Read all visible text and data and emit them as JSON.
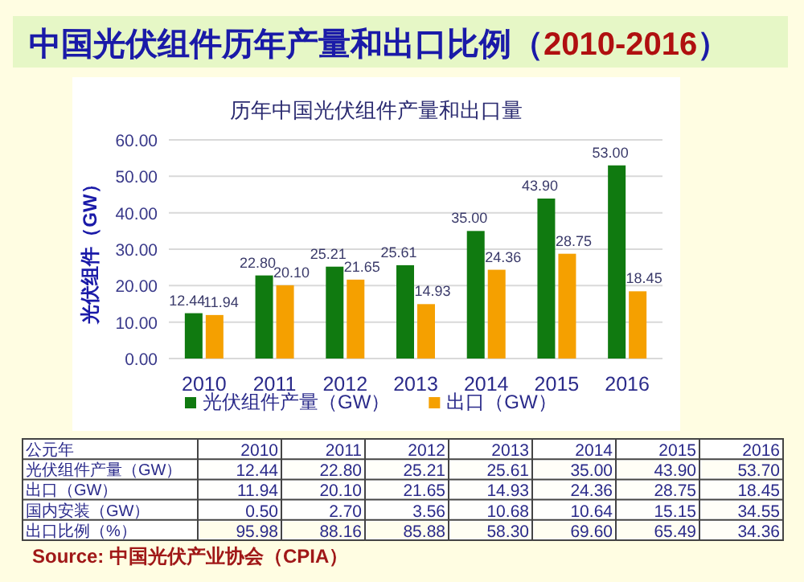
{
  "chart_data": [
    {
      "type": "bar",
      "title": "中国光伏组件历年产量和出口比例（2010-2016）",
      "subtitle": "历年中国光伏组件产量和出口量",
      "ylabel": "光伏组件（GW）",
      "categories": [
        "2010",
        "2011",
        "2012",
        "2013",
        "2014",
        "2015",
        "2016"
      ],
      "series": [
        {
          "name": "光伏组件产量（GW）",
          "color": "#107a10",
          "values": [
            12.44,
            22.8,
            25.21,
            25.61,
            35.0,
            43.9,
            53.0
          ],
          "value_labels": [
            "12.44",
            "22.80",
            "25.21",
            "25.61",
            "35.00",
            "43.90",
            "53.00"
          ]
        },
        {
          "name": "出口（GW）",
          "color": "#f5a000",
          "values": [
            11.94,
            20.1,
            21.65,
            14.93,
            24.36,
            28.75,
            18.45
          ],
          "value_labels": [
            "11.94",
            "20.10",
            "21.65",
            "14.93",
            "24.36",
            "28.75",
            "18.45"
          ]
        }
      ],
      "ylim": [
        0,
        60
      ],
      "yticks": [
        {
          "value": 0,
          "label": "0.00"
        },
        {
          "value": 10,
          "label": "10.00"
        },
        {
          "value": 20,
          "label": "20.00"
        },
        {
          "value": 30,
          "label": "30.00"
        },
        {
          "value": 40,
          "label": "40.00"
        },
        {
          "value": 50,
          "label": "50.00"
        },
        {
          "value": 60,
          "label": "60.00"
        }
      ],
      "grid": "y",
      "legend": "bottom"
    },
    {
      "type": "heatmap",
      "xlabel": "公元年",
      "categories": [
        "2010",
        "2011",
        "2012",
        "2013",
        "2014",
        "2015",
        "2016"
      ],
      "y_categories": [
        "光伏组件产量（GW）",
        "出口（GW）",
        "国内安装（GW）",
        "出口比例（%）"
      ],
      "cells": [
        [
          12.44,
          22.8,
          25.21,
          25.61,
          35.0,
          43.9,
          53.7
        ],
        [
          11.94,
          20.1,
          21.65,
          14.93,
          24.36,
          28.75,
          18.45
        ],
        [
          0.5,
          2.7,
          3.56,
          10.68,
          10.64,
          15.15,
          34.55
        ],
        [
          95.98,
          88.16,
          85.88,
          58.3,
          69.6,
          65.49,
          34.36
        ]
      ],
      "cell_labels": [
        [
          "12.44",
          "22.80",
          "25.21",
          "25.61",
          "35.00",
          "43.90",
          "53.70"
        ],
        [
          "11.94",
          "20.10",
          "21.65",
          "14.93",
          "24.36",
          "28.75",
          "18.45"
        ],
        [
          "0.50",
          "2.70",
          "3.56",
          "10.68",
          "10.64",
          "15.15",
          "34.55"
        ],
        [
          "95.98",
          "88.16",
          "85.88",
          "58.30",
          "69.60",
          "65.49",
          "34.36"
        ]
      ],
      "annotations": [
        "Source: 中国光伏产业协会（CPIA）"
      ]
    }
  ]
}
